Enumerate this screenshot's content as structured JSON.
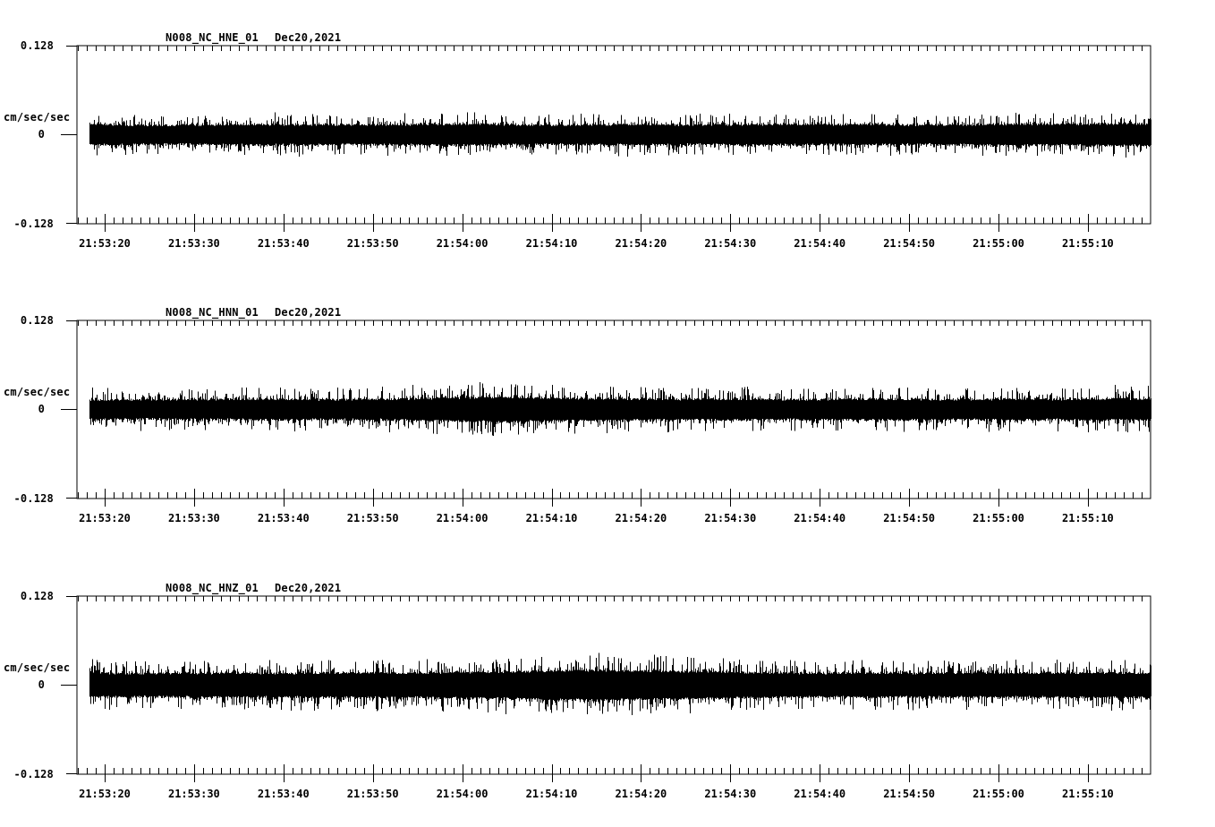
{
  "page": {
    "background_color": "#ffffff",
    "ink_color": "#000000",
    "description": "Three-channel strong-motion seismogram noise record"
  },
  "chart_data": [
    {
      "type": "line",
      "subtype": "seismic-waveform",
      "title": "N008_NC_HNE_01",
      "date_label": "Dec20,2021",
      "ylabel": "cm/sec/sec",
      "y_tick_labels": [
        "0.128",
        "0",
        "-0.128"
      ],
      "ylim": [
        -0.128,
        0.128
      ],
      "baseline": 0,
      "x_axis_start": "21:53:17",
      "x_axis_end": "21:55:17",
      "x_minor_tick_seconds": 1,
      "x_major_tick_seconds": 10,
      "x_tick_labels": [
        "21:53:20",
        "21:53:30",
        "21:53:40",
        "21:53:50",
        "21:54:00",
        "21:54:10",
        "21:54:20",
        "21:54:30",
        "21:54:40",
        "21:54:50",
        "21:55:00",
        "21:55:10"
      ],
      "noise_peak_envelope_cm_s2": [
        0.03,
        0.028,
        0.027,
        0.029,
        0.03,
        0.029,
        0.028,
        0.03,
        0.031,
        0.029,
        0.028,
        0.029,
        0.03,
        0.028,
        0.029,
        0.03,
        0.029,
        0.03,
        0.028,
        0.029,
        0.031,
        0.03,
        0.032,
        0.031
      ],
      "core_band_ratio": 0.44
    },
    {
      "type": "line",
      "subtype": "seismic-waveform",
      "title": "N008_NC_HNN_01",
      "date_label": "Dec20,2021",
      "ylabel": "cm/sec/sec",
      "y_tick_labels": [
        "0.128",
        "0",
        "-0.128"
      ],
      "ylim": [
        -0.128,
        0.128
      ],
      "baseline": 0,
      "x_axis_start": "21:53:17",
      "x_axis_end": "21:55:17",
      "x_minor_tick_seconds": 1,
      "x_major_tick_seconds": 10,
      "x_tick_labels": [
        "21:53:20",
        "21:53:30",
        "21:53:40",
        "21:53:50",
        "21:54:00",
        "21:54:10",
        "21:54:20",
        "21:54:30",
        "21:54:40",
        "21:54:50",
        "21:55:00",
        "21:55:10"
      ],
      "noise_peak_envelope_cm_s2": [
        0.03,
        0.029,
        0.03,
        0.031,
        0.032,
        0.03,
        0.031,
        0.033,
        0.036,
        0.038,
        0.035,
        0.033,
        0.032,
        0.031,
        0.032,
        0.03,
        0.031,
        0.032,
        0.031,
        0.03,
        0.032,
        0.031,
        0.033,
        0.032
      ],
      "core_band_ratio": 0.42
    },
    {
      "type": "line",
      "subtype": "seismic-waveform",
      "title": "N008_NC_HNZ_01",
      "date_label": "Dec20,2021",
      "ylabel": "cm/sec/sec",
      "y_tick_labels": [
        "0.128",
        "0",
        "-0.128"
      ],
      "ylim": [
        -0.128,
        0.128
      ],
      "baseline": 0,
      "x_axis_start": "21:53:17",
      "x_axis_end": "21:55:17",
      "x_minor_tick_seconds": 1,
      "x_major_tick_seconds": 10,
      "x_tick_labels": [
        "21:53:20",
        "21:53:30",
        "21:53:40",
        "21:53:50",
        "21:54:00",
        "21:54:10",
        "21:54:20",
        "21:54:30",
        "21:54:40",
        "21:54:50",
        "21:55:00",
        "21:55:10"
      ],
      "noise_peak_envelope_cm_s2": [
        0.036,
        0.034,
        0.035,
        0.036,
        0.035,
        0.036,
        0.037,
        0.036,
        0.038,
        0.04,
        0.043,
        0.045,
        0.042,
        0.04,
        0.038,
        0.036,
        0.035,
        0.036,
        0.035,
        0.036,
        0.035,
        0.036,
        0.037,
        0.036
      ],
      "core_band_ratio": 0.44
    }
  ]
}
